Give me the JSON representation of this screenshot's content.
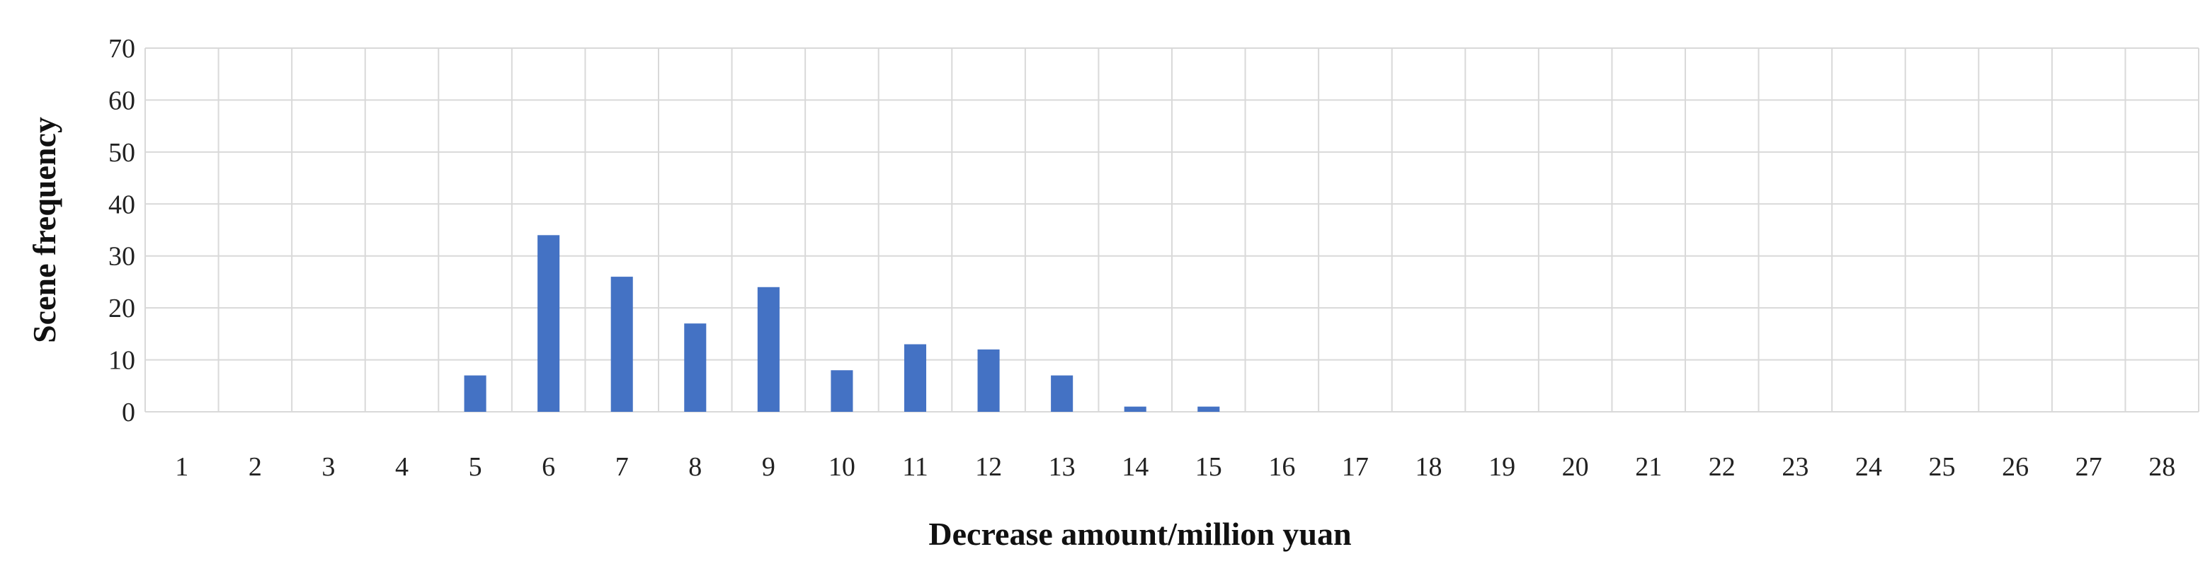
{
  "chart_data": {
    "type": "bar",
    "title": "",
    "xlabel": "Decrease amount/million yuan",
    "ylabel": "Scene frequency",
    "categories": [
      "1",
      "2",
      "3",
      "4",
      "5",
      "6",
      "7",
      "8",
      "9",
      "10",
      "11",
      "12",
      "13",
      "14",
      "15",
      "16",
      "17",
      "18",
      "19",
      "20",
      "21",
      "22",
      "23",
      "24",
      "25",
      "26",
      "27",
      "28"
    ],
    "values": [
      0,
      0,
      0,
      0,
      7,
      34,
      26,
      17,
      24,
      8,
      13,
      12,
      7,
      1,
      1,
      0,
      0,
      0,
      0,
      0,
      0,
      0,
      0,
      0,
      0,
      0,
      0,
      0
    ],
    "yticks": [
      "0",
      "10",
      "20",
      "30",
      "40",
      "50",
      "60",
      "70"
    ],
    "ylim": [
      0,
      70
    ],
    "grid": true,
    "legend": "none",
    "bar_color": "#4472C4",
    "grid_color": "#D9D9D9"
  }
}
